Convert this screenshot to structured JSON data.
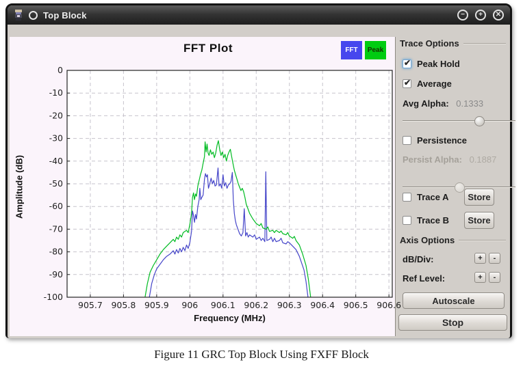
{
  "window": {
    "title": "Top Block",
    "controls": {
      "minimize": "−",
      "maximize": "+",
      "close": "✕"
    }
  },
  "chart_data": {
    "type": "line",
    "title": "FFT Plot",
    "xlabel": "Frequency (MHz)",
    "ylabel": "Amplitude (dB)",
    "xlim": [
      905.63,
      906.61
    ],
    "ylim": [
      -100,
      0
    ],
    "grid": true,
    "grid_color": "#c6c3cc",
    "legend_position": "top-right",
    "xticks": [
      {
        "v": 905.7,
        "label": "905.7"
      },
      {
        "v": 905.8,
        "label": "905.8"
      },
      {
        "v": 905.9,
        "label": "905.9"
      },
      {
        "v": 906.0,
        "label": "906"
      },
      {
        "v": 906.1,
        "label": "906.1"
      },
      {
        "v": 906.2,
        "label": "906.2"
      },
      {
        "v": 906.3,
        "label": "906.3"
      },
      {
        "v": 906.4,
        "label": "906.4"
      },
      {
        "v": 906.5,
        "label": "906.5"
      },
      {
        "v": 906.6,
        "label": "906.6"
      }
    ],
    "yticks": [
      {
        "v": 0,
        "label": "0"
      },
      {
        "v": -10,
        "label": "-10"
      },
      {
        "v": -20,
        "label": "-20"
      },
      {
        "v": -30,
        "label": "-30"
      },
      {
        "v": -40,
        "label": "-40"
      },
      {
        "v": -50,
        "label": "-50"
      },
      {
        "v": -60,
        "label": "-60"
      },
      {
        "v": -70,
        "label": "-70"
      },
      {
        "v": -80,
        "label": "-80"
      },
      {
        "v": -90,
        "label": "-90"
      },
      {
        "v": -100,
        "label": "-100"
      }
    ],
    "series": [
      {
        "name": "FFT",
        "color": "#4545c9",
        "legend_color": "#4747ee",
        "legend_text_color": "#ffffff",
        "points": [
          [
            905.878,
            -100
          ],
          [
            905.885,
            -94
          ],
          [
            905.893,
            -90
          ],
          [
            905.9,
            -87.5
          ],
          [
            905.91,
            -85.5
          ],
          [
            905.92,
            -83.5
          ],
          [
            905.93,
            -82
          ],
          [
            905.94,
            -81
          ],
          [
            905.95,
            -79.5
          ],
          [
            905.955,
            -81
          ],
          [
            905.96,
            -79
          ],
          [
            905.965,
            -80.5
          ],
          [
            905.97,
            -78.5
          ],
          [
            905.975,
            -80
          ],
          [
            905.98,
            -78
          ],
          [
            905.985,
            -79.5
          ],
          [
            905.99,
            -77
          ],
          [
            905.995,
            -78.5
          ],
          [
            906.0,
            -76
          ],
          [
            906.005,
            -71
          ],
          [
            906.008,
            -62
          ],
          [
            906.011,
            -64
          ],
          [
            906.014,
            -67
          ],
          [
            906.017,
            -63.5
          ],
          [
            906.02,
            -65.5
          ],
          [
            906.024,
            -60
          ],
          [
            906.028,
            -57
          ],
          [
            906.03,
            -52
          ],
          [
            906.033,
            -57
          ],
          [
            906.036,
            -56
          ],
          [
            906.04,
            -55
          ],
          [
            906.044,
            -48
          ],
          [
            906.047,
            -45.5
          ],
          [
            906.05,
            -47
          ],
          [
            906.053,
            -46
          ],
          [
            906.056,
            -52
          ],
          [
            906.06,
            -50
          ],
          [
            906.064,
            -47.5
          ],
          [
            906.068,
            -50
          ],
          [
            906.072,
            -48.5
          ],
          [
            906.076,
            -51
          ],
          [
            906.08,
            -50.5
          ],
          [
            906.085,
            -43
          ],
          [
            906.088,
            -51
          ],
          [
            906.092,
            -50
          ],
          [
            906.096,
            -52
          ],
          [
            906.1,
            -46
          ],
          [
            906.104,
            -51
          ],
          [
            906.108,
            -49.5
          ],
          [
            906.112,
            -52
          ],
          [
            906.116,
            -50.5
          ],
          [
            906.12,
            -50
          ],
          [
            906.124,
            -49
          ],
          [
            906.128,
            -45
          ],
          [
            906.131,
            -57
          ],
          [
            906.134,
            -63
          ],
          [
            906.137,
            -66
          ],
          [
            906.14,
            -68
          ],
          [
            906.145,
            -70
          ],
          [
            906.15,
            -72
          ],
          [
            906.155,
            -73
          ],
          [
            906.16,
            -71.5
          ],
          [
            906.164,
            -61
          ],
          [
            906.168,
            -73
          ],
          [
            906.172,
            -71.5
          ],
          [
            906.176,
            -73.5
          ],
          [
            906.18,
            -72.5
          ],
          [
            906.19,
            -73.5
          ],
          [
            906.195,
            -72.5
          ],
          [
            906.2,
            -74.5
          ],
          [
            906.21,
            -73.5
          ],
          [
            906.215,
            -75
          ],
          [
            906.22,
            -74
          ],
          [
            906.226,
            -75.5
          ],
          [
            906.229,
            -44.7
          ],
          [
            906.232,
            -75
          ],
          [
            906.24,
            -74.5
          ],
          [
            906.245,
            -73.5
          ],
          [
            906.25,
            -75.5
          ],
          [
            906.255,
            -74
          ],
          [
            906.26,
            -75.5
          ],
          [
            906.27,
            -75
          ],
          [
            906.275,
            -74
          ],
          [
            906.28,
            -76
          ],
          [
            906.29,
            -76.5
          ],
          [
            906.295,
            -75.5
          ],
          [
            906.3,
            -76
          ],
          [
            906.31,
            -77.5
          ],
          [
            906.32,
            -79
          ],
          [
            906.33,
            -82
          ],
          [
            906.337,
            -85
          ],
          [
            906.344,
            -88
          ],
          [
            906.35,
            -93
          ],
          [
            906.356,
            -100
          ]
        ]
      },
      {
        "name": "Peak",
        "color": "#00bb22",
        "legend_color": "#00cc11",
        "legend_text_color": "#143300",
        "points": [
          [
            905.865,
            -100
          ],
          [
            905.872,
            -94
          ],
          [
            905.88,
            -89
          ],
          [
            905.89,
            -86
          ],
          [
            905.9,
            -83.5
          ],
          [
            905.91,
            -81
          ],
          [
            905.92,
            -79
          ],
          [
            905.93,
            -77.5
          ],
          [
            905.94,
            -76
          ],
          [
            905.95,
            -74.5
          ],
          [
            905.955,
            -75.5
          ],
          [
            905.96,
            -73.5
          ],
          [
            905.965,
            -74.5
          ],
          [
            905.97,
            -72.5
          ],
          [
            905.975,
            -73.5
          ],
          [
            905.98,
            -71.5
          ],
          [
            905.99,
            -70.5
          ],
          [
            905.995,
            -71.5
          ],
          [
            906.0,
            -68
          ],
          [
            906.005,
            -63
          ],
          [
            906.008,
            -56
          ],
          [
            906.011,
            -54
          ],
          [
            906.014,
            -57
          ],
          [
            906.017,
            -54.5
          ],
          [
            906.02,
            -55.5
          ],
          [
            906.024,
            -51
          ],
          [
            906.028,
            -48.5
          ],
          [
            906.032,
            -46
          ],
          [
            906.036,
            -44
          ],
          [
            906.04,
            -41
          ],
          [
            906.044,
            -38
          ],
          [
            906.046,
            -31.5
          ],
          [
            906.049,
            -36
          ],
          [
            906.052,
            -32.5
          ],
          [
            906.055,
            -36.5
          ],
          [
            906.058,
            -37.5
          ],
          [
            906.062,
            -35
          ],
          [
            906.066,
            -37
          ],
          [
            906.07,
            -36
          ],
          [
            906.074,
            -38.5
          ],
          [
            906.078,
            -36.5
          ],
          [
            906.082,
            -33
          ],
          [
            906.086,
            -31
          ],
          [
            906.09,
            -35
          ],
          [
            906.094,
            -37.5
          ],
          [
            906.098,
            -36
          ],
          [
            906.102,
            -38.5
          ],
          [
            906.106,
            -37
          ],
          [
            906.11,
            -40
          ],
          [
            906.114,
            -37.5
          ],
          [
            906.118,
            -36
          ],
          [
            906.122,
            -34.8
          ],
          [
            906.126,
            -38
          ],
          [
            906.13,
            -41
          ],
          [
            906.134,
            -44
          ],
          [
            906.138,
            -46
          ],
          [
            906.142,
            -48
          ],
          [
            906.146,
            -50
          ],
          [
            906.15,
            -51.5
          ],
          [
            906.154,
            -53
          ],
          [
            906.158,
            -52
          ],
          [
            906.162,
            -53.5
          ],
          [
            906.166,
            -56
          ],
          [
            906.17,
            -59
          ],
          [
            906.175,
            -61
          ],
          [
            906.18,
            -63
          ],
          [
            906.19,
            -65.5
          ],
          [
            906.2,
            -67.5
          ],
          [
            906.21,
            -68.5
          ],
          [
            906.215,
            -67.5
          ],
          [
            906.22,
            -69.5
          ],
          [
            906.23,
            -70
          ],
          [
            906.235,
            -69
          ],
          [
            906.24,
            -71
          ],
          [
            906.25,
            -70.5
          ],
          [
            906.255,
            -71.5
          ],
          [
            906.26,
            -70.5
          ],
          [
            906.27,
            -71.5
          ],
          [
            906.275,
            -70.8
          ],
          [
            906.28,
            -72
          ],
          [
            906.29,
            -72.5
          ],
          [
            906.295,
            -71.5
          ],
          [
            906.3,
            -73
          ],
          [
            906.31,
            -74
          ],
          [
            906.315,
            -73.2
          ],
          [
            906.32,
            -75
          ],
          [
            906.33,
            -77
          ],
          [
            906.34,
            -81
          ],
          [
            906.35,
            -86
          ],
          [
            906.357,
            -92
          ],
          [
            906.364,
            -100
          ]
        ]
      }
    ]
  },
  "sidebar": {
    "trace_options": {
      "header": "Trace Options",
      "peak_hold": {
        "label": "Peak Hold",
        "checked": true
      },
      "average": {
        "label": "Average",
        "checked": true
      },
      "avg_alpha": {
        "label": "Avg Alpha:",
        "value": "0.1333",
        "slider_pos": 68
      },
      "persistence": {
        "label": "Persistence",
        "checked": false
      },
      "persist_alpha": {
        "label": "Persist Alpha:",
        "value": "0.1887",
        "slider_pos": 50
      },
      "trace_a": {
        "label": "Trace A",
        "checked": false,
        "store_label": "Store"
      },
      "trace_b": {
        "label": "Trace B",
        "checked": false,
        "store_label": "Store"
      }
    },
    "axis_options": {
      "header": "Axis Options",
      "db_div": {
        "label": "dB/Div:",
        "plus": "+",
        "minus": "-"
      },
      "ref_level": {
        "label": "Ref Level:",
        "plus": "+",
        "minus": "-"
      },
      "autoscale_label": "Autoscale",
      "stop_label": "Stop"
    }
  },
  "caption": "Figure 11 GRC Top Block Using FXFF Block"
}
